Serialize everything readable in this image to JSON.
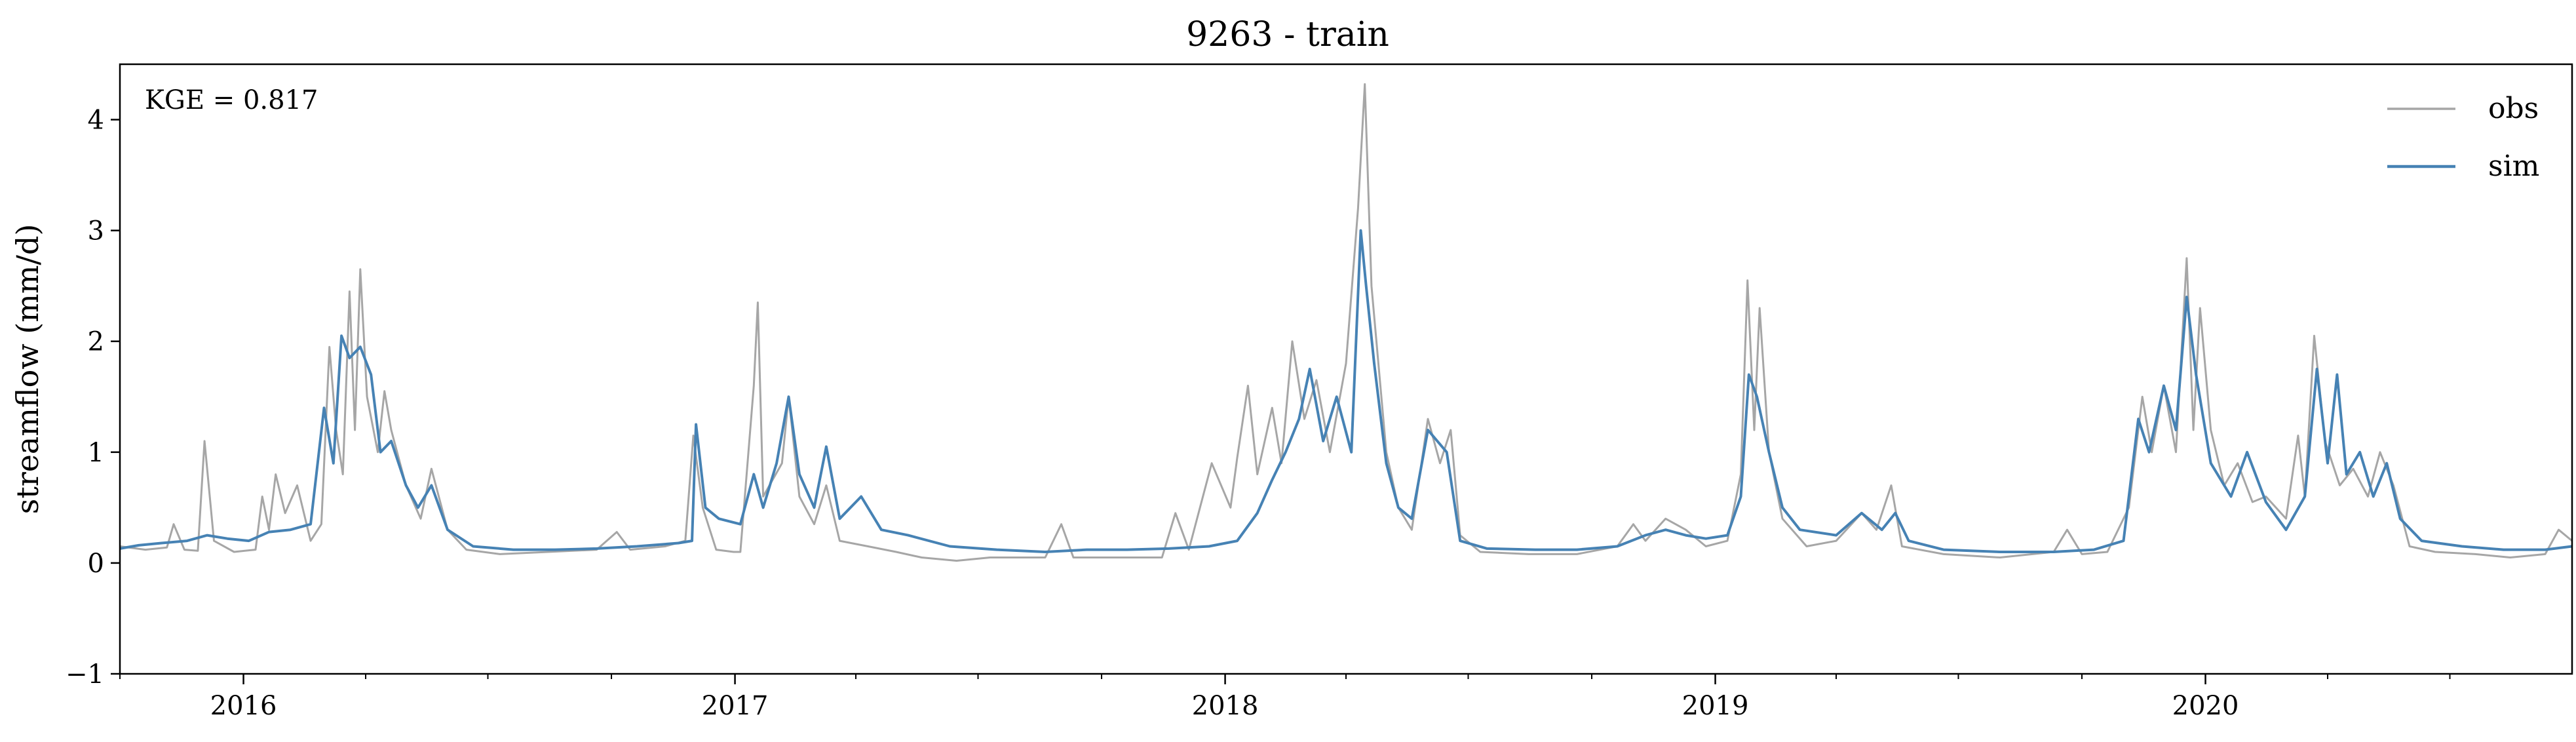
{
  "chart_data": {
    "type": "line",
    "title": "9263 - train",
    "xlabel": "",
    "ylabel": "streamflow (mm/d)",
    "annotation": "KGE = 0.817",
    "xlim": [
      "2015-10-01",
      "2020-09-30"
    ],
    "ylim": [
      -1,
      4.5
    ],
    "yticks": [
      -1,
      0,
      1,
      2,
      3,
      4
    ],
    "ytick_labels": [
      "−1",
      "0",
      "1",
      "2",
      "3",
      "4"
    ],
    "xtick_labels": [
      {
        "label": "2016",
        "date": "2016-01-01"
      },
      {
        "label": "2017",
        "date": "2017-01-01"
      },
      {
        "label": "2018",
        "date": "2018-01-01"
      },
      {
        "label": "2019",
        "date": "2019-01-01"
      },
      {
        "label": "2020",
        "date": "2020-01-01"
      }
    ],
    "grid": false,
    "legend": "top-right",
    "series": [
      {
        "name": "obs",
        "color": "#a6a6a6",
        "points": [
          [
            "2015-10-01",
            0.15
          ],
          [
            "2015-10-20",
            0.12
          ],
          [
            "2015-11-05",
            0.14
          ],
          [
            "2015-11-10",
            0.35
          ],
          [
            "2015-11-18",
            0.12
          ],
          [
            "2015-11-28",
            0.11
          ],
          [
            "2015-12-03",
            1.1
          ],
          [
            "2015-12-10",
            0.2
          ],
          [
            "2015-12-25",
            0.1
          ],
          [
            "2016-01-10",
            0.12
          ],
          [
            "2016-01-15",
            0.6
          ],
          [
            "2016-01-20",
            0.3
          ],
          [
            "2016-01-25",
            0.8
          ],
          [
            "2016-02-01",
            0.45
          ],
          [
            "2016-02-10",
            0.7
          ],
          [
            "2016-02-20",
            0.2
          ],
          [
            "2016-02-28",
            0.35
          ],
          [
            "2016-03-05",
            1.95
          ],
          [
            "2016-03-10",
            1.2
          ],
          [
            "2016-03-15",
            0.8
          ],
          [
            "2016-03-20",
            2.45
          ],
          [
            "2016-03-24",
            1.2
          ],
          [
            "2016-03-28",
            2.65
          ],
          [
            "2016-04-02",
            1.5
          ],
          [
            "2016-04-10",
            1.0
          ],
          [
            "2016-04-15",
            1.55
          ],
          [
            "2016-04-20",
            1.2
          ],
          [
            "2016-05-01",
            0.7
          ],
          [
            "2016-05-12",
            0.4
          ],
          [
            "2016-05-20",
            0.85
          ],
          [
            "2016-06-01",
            0.3
          ],
          [
            "2016-06-15",
            0.12
          ],
          [
            "2016-07-10",
            0.08
          ],
          [
            "2016-08-15",
            0.1
          ],
          [
            "2016-09-20",
            0.12
          ],
          [
            "2016-10-05",
            0.28
          ],
          [
            "2016-10-15",
            0.12
          ],
          [
            "2016-11-10",
            0.15
          ],
          [
            "2016-11-25",
            0.2
          ],
          [
            "2016-12-01",
            1.15
          ],
          [
            "2016-12-08",
            0.5
          ],
          [
            "2016-12-18",
            0.12
          ],
          [
            "2016-12-31",
            0.1
          ],
          [
            "2017-01-05",
            0.1
          ],
          [
            "2017-01-15",
            1.6
          ],
          [
            "2017-01-18",
            2.35
          ],
          [
            "2017-01-22",
            0.6
          ],
          [
            "2017-02-05",
            0.9
          ],
          [
            "2017-02-10",
            1.5
          ],
          [
            "2017-02-18",
            0.6
          ],
          [
            "2017-03-01",
            0.35
          ],
          [
            "2017-03-10",
            0.7
          ],
          [
            "2017-03-20",
            0.2
          ],
          [
            "2017-04-10",
            0.15
          ],
          [
            "2017-05-01",
            0.1
          ],
          [
            "2017-05-20",
            0.05
          ],
          [
            "2017-06-15",
            0.02
          ],
          [
            "2017-07-10",
            0.05
          ],
          [
            "2017-08-20",
            0.05
          ],
          [
            "2017-09-01",
            0.35
          ],
          [
            "2017-09-10",
            0.05
          ],
          [
            "2017-10-20",
            0.05
          ],
          [
            "2017-11-15",
            0.05
          ],
          [
            "2017-11-25",
            0.45
          ],
          [
            "2017-12-05",
            0.12
          ],
          [
            "2017-12-22",
            0.9
          ],
          [
            "2018-01-05",
            0.5
          ],
          [
            "2018-01-10",
            0.95
          ],
          [
            "2018-01-18",
            1.6
          ],
          [
            "2018-01-25",
            0.8
          ],
          [
            "2018-02-05",
            1.4
          ],
          [
            "2018-02-12",
            0.9
          ],
          [
            "2018-02-20",
            2.0
          ],
          [
            "2018-03-01",
            1.3
          ],
          [
            "2018-03-10",
            1.65
          ],
          [
            "2018-03-20",
            1.0
          ],
          [
            "2018-04-01",
            1.8
          ],
          [
            "2018-04-10",
            3.2
          ],
          [
            "2018-04-15",
            4.32
          ],
          [
            "2018-04-20",
            2.5
          ],
          [
            "2018-05-01",
            1.0
          ],
          [
            "2018-05-10",
            0.5
          ],
          [
            "2018-05-20",
            0.3
          ],
          [
            "2018-06-01",
            1.3
          ],
          [
            "2018-06-10",
            0.9
          ],
          [
            "2018-06-18",
            1.2
          ],
          [
            "2018-06-25",
            0.25
          ],
          [
            "2018-07-10",
            0.1
          ],
          [
            "2018-08-15",
            0.08
          ],
          [
            "2018-09-20",
            0.08
          ],
          [
            "2018-10-20",
            0.15
          ],
          [
            "2018-11-01",
            0.35
          ],
          [
            "2018-11-10",
            0.2
          ],
          [
            "2018-11-25",
            0.4
          ],
          [
            "2018-12-10",
            0.3
          ],
          [
            "2018-12-25",
            0.15
          ],
          [
            "2019-01-10",
            0.2
          ],
          [
            "2019-01-20",
            0.8
          ],
          [
            "2019-01-25",
            2.55
          ],
          [
            "2019-01-30",
            1.2
          ],
          [
            "2019-02-03",
            2.3
          ],
          [
            "2019-02-10",
            1.0
          ],
          [
            "2019-02-20",
            0.4
          ],
          [
            "2019-03-10",
            0.15
          ],
          [
            "2019-04-01",
            0.2
          ],
          [
            "2019-04-20",
            0.45
          ],
          [
            "2019-05-01",
            0.3
          ],
          [
            "2019-05-12",
            0.7
          ],
          [
            "2019-05-20",
            0.15
          ],
          [
            "2019-06-20",
            0.08
          ],
          [
            "2019-08-01",
            0.05
          ],
          [
            "2019-09-10",
            0.1
          ],
          [
            "2019-09-20",
            0.3
          ],
          [
            "2019-10-01",
            0.08
          ],
          [
            "2019-10-20",
            0.1
          ],
          [
            "2019-11-05",
            0.5
          ],
          [
            "2019-11-15",
            1.5
          ],
          [
            "2019-11-22",
            1.0
          ],
          [
            "2019-12-01",
            1.6
          ],
          [
            "2019-12-10",
            1.0
          ],
          [
            "2019-12-18",
            2.75
          ],
          [
            "2019-12-23",
            1.2
          ],
          [
            "2019-12-28",
            2.3
          ],
          [
            "2020-01-05",
            1.2
          ],
          [
            "2020-01-15",
            0.7
          ],
          [
            "2020-01-25",
            0.9
          ],
          [
            "2020-02-05",
            0.55
          ],
          [
            "2020-02-15",
            0.6
          ],
          [
            "2020-03-01",
            0.4
          ],
          [
            "2020-03-10",
            1.15
          ],
          [
            "2020-03-15",
            0.6
          ],
          [
            "2020-03-22",
            2.05
          ],
          [
            "2020-03-30",
            1.1
          ],
          [
            "2020-04-10",
            0.7
          ],
          [
            "2020-04-20",
            0.85
          ],
          [
            "2020-05-01",
            0.6
          ],
          [
            "2020-05-10",
            1.0
          ],
          [
            "2020-05-20",
            0.7
          ],
          [
            "2020-06-01",
            0.15
          ],
          [
            "2020-06-20",
            0.1
          ],
          [
            "2020-07-20",
            0.08
          ],
          [
            "2020-08-15",
            0.05
          ],
          [
            "2020-09-10",
            0.08
          ],
          [
            "2020-09-20",
            0.3
          ],
          [
            "2020-09-30",
            0.2
          ]
        ]
      },
      {
        "name": "sim",
        "color": "#4682b4",
        "points": [
          [
            "2015-10-01",
            0.13
          ],
          [
            "2015-10-15",
            0.16
          ],
          [
            "2015-11-01",
            0.18
          ],
          [
            "2015-11-20",
            0.2
          ],
          [
            "2015-12-05",
            0.25
          ],
          [
            "2015-12-20",
            0.22
          ],
          [
            "2016-01-05",
            0.2
          ],
          [
            "2016-01-20",
            0.28
          ],
          [
            "2016-02-05",
            0.3
          ],
          [
            "2016-02-20",
            0.35
          ],
          [
            "2016-03-01",
            1.4
          ],
          [
            "2016-03-08",
            0.9
          ],
          [
            "2016-03-14",
            2.05
          ],
          [
            "2016-03-20",
            1.85
          ],
          [
            "2016-03-28",
            1.95
          ],
          [
            "2016-04-05",
            1.7
          ],
          [
            "2016-04-12",
            1.0
          ],
          [
            "2016-04-20",
            1.1
          ],
          [
            "2016-05-01",
            0.7
          ],
          [
            "2016-05-10",
            0.5
          ],
          [
            "2016-05-20",
            0.7
          ],
          [
            "2016-06-01",
            0.3
          ],
          [
            "2016-06-20",
            0.15
          ],
          [
            "2016-07-20",
            0.12
          ],
          [
            "2016-08-20",
            0.12
          ],
          [
            "2016-09-20",
            0.13
          ],
          [
            "2016-10-20",
            0.15
          ],
          [
            "2016-11-20",
            0.18
          ],
          [
            "2016-11-30",
            0.2
          ],
          [
            "2016-12-03",
            1.25
          ],
          [
            "2016-12-10",
            0.5
          ],
          [
            "2016-12-20",
            0.4
          ],
          [
            "2017-01-05",
            0.35
          ],
          [
            "2017-01-15",
            0.8
          ],
          [
            "2017-01-22",
            0.5
          ],
          [
            "2017-02-01",
            0.9
          ],
          [
            "2017-02-10",
            1.5
          ],
          [
            "2017-02-18",
            0.8
          ],
          [
            "2017-03-01",
            0.5
          ],
          [
            "2017-03-10",
            1.05
          ],
          [
            "2017-03-20",
            0.4
          ],
          [
            "2017-04-05",
            0.6
          ],
          [
            "2017-04-20",
            0.3
          ],
          [
            "2017-05-10",
            0.25
          ],
          [
            "2017-06-10",
            0.15
          ],
          [
            "2017-07-15",
            0.12
          ],
          [
            "2017-08-20",
            0.1
          ],
          [
            "2017-09-20",
            0.12
          ],
          [
            "2017-10-20",
            0.12
          ],
          [
            "2017-11-20",
            0.13
          ],
          [
            "2017-12-20",
            0.15
          ],
          [
            "2018-01-10",
            0.2
          ],
          [
            "2018-01-25",
            0.45
          ],
          [
            "2018-02-05",
            0.75
          ],
          [
            "2018-02-15",
            1.0
          ],
          [
            "2018-02-25",
            1.3
          ],
          [
            "2018-03-05",
            1.75
          ],
          [
            "2018-03-15",
            1.1
          ],
          [
            "2018-03-25",
            1.5
          ],
          [
            "2018-04-05",
            1.0
          ],
          [
            "2018-04-12",
            3.0
          ],
          [
            "2018-04-16",
            2.5
          ],
          [
            "2018-04-22",
            1.8
          ],
          [
            "2018-05-01",
            0.9
          ],
          [
            "2018-05-10",
            0.5
          ],
          [
            "2018-05-20",
            0.4
          ],
          [
            "2018-06-01",
            1.2
          ],
          [
            "2018-06-15",
            1.0
          ],
          [
            "2018-06-25",
            0.2
          ],
          [
            "2018-07-15",
            0.13
          ],
          [
            "2018-08-20",
            0.12
          ],
          [
            "2018-09-20",
            0.12
          ],
          [
            "2018-10-20",
            0.15
          ],
          [
            "2018-11-10",
            0.25
          ],
          [
            "2018-11-25",
            0.3
          ],
          [
            "2018-12-10",
            0.25
          ],
          [
            "2018-12-25",
            0.22
          ],
          [
            "2019-01-10",
            0.25
          ],
          [
            "2019-01-20",
            0.6
          ],
          [
            "2019-01-26",
            1.7
          ],
          [
            "2019-02-01",
            1.5
          ],
          [
            "2019-02-10",
            1.0
          ],
          [
            "2019-02-20",
            0.5
          ],
          [
            "2019-03-05",
            0.3
          ],
          [
            "2019-04-01",
            0.25
          ],
          [
            "2019-04-20",
            0.45
          ],
          [
            "2019-05-05",
            0.3
          ],
          [
            "2019-05-15",
            0.45
          ],
          [
            "2019-05-25",
            0.2
          ],
          [
            "2019-06-20",
            0.12
          ],
          [
            "2019-08-01",
            0.1
          ],
          [
            "2019-09-10",
            0.1
          ],
          [
            "2019-10-10",
            0.12
          ],
          [
            "2019-11-01",
            0.2
          ],
          [
            "2019-11-12",
            1.3
          ],
          [
            "2019-11-20",
            1.0
          ],
          [
            "2019-12-01",
            1.6
          ],
          [
            "2019-12-10",
            1.2
          ],
          [
            "2019-12-18",
            2.4
          ],
          [
            "2019-12-25",
            1.7
          ],
          [
            "2020-01-05",
            0.9
          ],
          [
            "2020-01-20",
            0.6
          ],
          [
            "2020-02-01",
            1.0
          ],
          [
            "2020-02-15",
            0.55
          ],
          [
            "2020-03-01",
            0.3
          ],
          [
            "2020-03-15",
            0.6
          ],
          [
            "2020-03-24",
            1.75
          ],
          [
            "2020-04-01",
            0.9
          ],
          [
            "2020-04-08",
            1.7
          ],
          [
            "2020-04-15",
            0.8
          ],
          [
            "2020-04-25",
            1.0
          ],
          [
            "2020-05-05",
            0.6
          ],
          [
            "2020-05-15",
            0.9
          ],
          [
            "2020-05-25",
            0.4
          ],
          [
            "2020-06-10",
            0.2
          ],
          [
            "2020-07-10",
            0.15
          ],
          [
            "2020-08-10",
            0.12
          ],
          [
            "2020-09-10",
            0.12
          ],
          [
            "2020-09-30",
            0.15
          ]
        ]
      }
    ]
  }
}
